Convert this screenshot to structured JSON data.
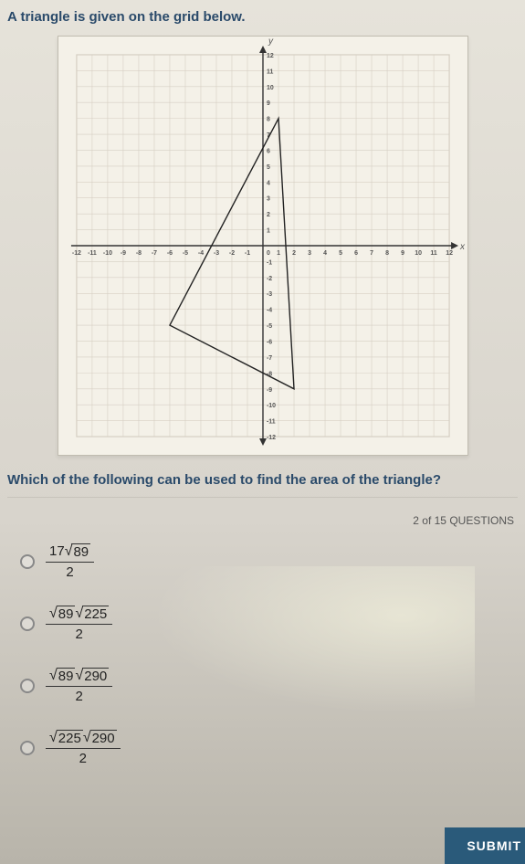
{
  "title": "A triangle is given on the grid below.",
  "subtitle": "Which of the following can be used to find the area of the triangle?",
  "counter": "2 of 15 QUESTIONS",
  "submit": "SUBMIT",
  "chart": {
    "xlim": [
      -12,
      12
    ],
    "ylim": [
      -12,
      12
    ],
    "tick_step": 1,
    "grid_color": "#d6cfc3",
    "axis_color": "#333333",
    "text_color": "#555555",
    "background": "#f4f1e8",
    "label_fontsize": 7,
    "x_axis_label": "x",
    "y_axis_label": "y",
    "triangle": {
      "points": [
        [
          1,
          8
        ],
        [
          2,
          -9
        ],
        [
          -6,
          -5
        ]
      ],
      "stroke": "#222222",
      "stroke_width": 1.4,
      "fill": "none"
    }
  },
  "options": {
    "a": {
      "num_plain": "17",
      "num_rad1": "89",
      "den": "2"
    },
    "b": {
      "num_rad1": "89",
      "num_rad2": "225",
      "den": "2"
    },
    "c": {
      "num_rad1": "89",
      "num_rad2": "290",
      "den": "2"
    },
    "d": {
      "num_rad1": "225",
      "num_rad2": "290",
      "den": "2"
    }
  }
}
